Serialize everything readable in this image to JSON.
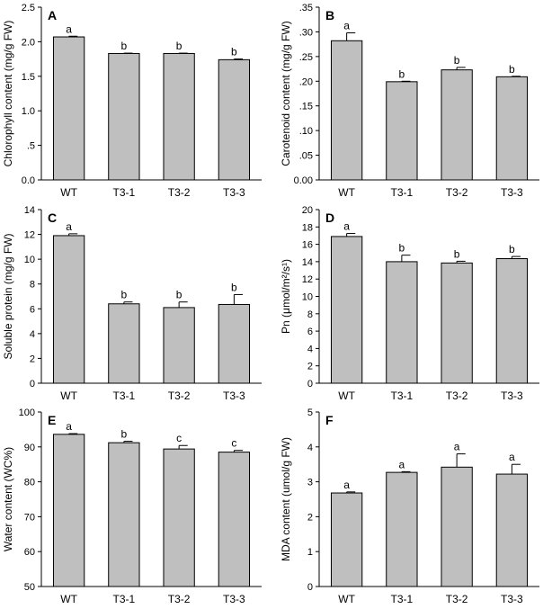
{
  "chart_data": [
    {
      "panel": "A",
      "type": "bar",
      "ylabel": "Chlorophyll content (mg/g FW)",
      "categories": [
        "WT",
        "T3-1",
        "T3-2",
        "T3-3"
      ],
      "values": [
        2.07,
        1.83,
        1.83,
        1.74
      ],
      "errors": [
        0.01,
        0.005,
        0.005,
        0.01
      ],
      "significance": [
        "a",
        "b",
        "b",
        "b"
      ],
      "ylim": [
        0,
        2.5
      ],
      "yticks": [
        0,
        0.5,
        1.0,
        1.5,
        2.0,
        2.5
      ],
      "ytick_labels": [
        "0.0",
        ".5",
        "1.0",
        "1.5",
        "2.0",
        "2.5"
      ]
    },
    {
      "panel": "B",
      "type": "bar",
      "ylabel": "Carotenoid content (mg/g FW)",
      "categories": [
        "WT",
        "T3-1",
        "T3-2",
        "T3-3"
      ],
      "values": [
        0.282,
        0.199,
        0.223,
        0.209
      ],
      "errors": [
        0.016,
        0.001,
        0.005,
        0.001
      ],
      "significance": [
        "a",
        "b",
        "b",
        "b"
      ],
      "ylim": [
        0,
        0.35
      ],
      "yticks": [
        0,
        0.05,
        0.1,
        0.15,
        0.2,
        0.25,
        0.3,
        0.35
      ],
      "ytick_labels": [
        "0.00",
        ".05",
        ".10",
        ".15",
        ".20",
        ".25",
        ".30",
        ".35"
      ]
    },
    {
      "panel": "C",
      "type": "bar",
      "ylabel": "Soluble protein (mg/g FW)",
      "categories": [
        "WT",
        "T3-1",
        "T3-2",
        "T3-3"
      ],
      "values": [
        11.9,
        6.4,
        6.1,
        6.35
      ],
      "errors": [
        0.15,
        0.15,
        0.45,
        0.8
      ],
      "significance": [
        "a",
        "b",
        "b",
        "b"
      ],
      "ylim": [
        0,
        14
      ],
      "yticks": [
        0,
        2,
        4,
        6,
        8,
        10,
        12,
        14
      ],
      "ytick_labels": [
        "0",
        "2",
        "4",
        "6",
        "8",
        "10",
        "12",
        "14"
      ]
    },
    {
      "panel": "D",
      "type": "bar",
      "ylabel": "Pn (μmol/m²/s¹)",
      "categories": [
        "WT",
        "T3-1",
        "T3-2",
        "T3-3"
      ],
      "values": [
        16.9,
        14.0,
        13.85,
        14.35
      ],
      "errors": [
        0.35,
        0.75,
        0.2,
        0.25
      ],
      "significance": [
        "a",
        "b",
        "b",
        "b"
      ],
      "ylim": [
        0,
        20
      ],
      "yticks": [
        0,
        2,
        4,
        6,
        8,
        10,
        12,
        14,
        16,
        18,
        20
      ],
      "ytick_labels": [
        "0",
        "2",
        "4",
        "6",
        "8",
        "10",
        "12",
        "14",
        "16",
        "18",
        "20"
      ]
    },
    {
      "panel": "E",
      "type": "bar",
      "ylabel": "Water content (WC%)",
      "categories": [
        "WT",
        "T3-1",
        "T3-2",
        "T3-3"
      ],
      "values": [
        93.6,
        91.2,
        89.4,
        88.5
      ],
      "errors": [
        0.2,
        0.4,
        1.0,
        0.5
      ],
      "significance": [
        "a",
        "b",
        "c",
        "c"
      ],
      "ylim": [
        50,
        100
      ],
      "yticks": [
        50,
        60,
        70,
        80,
        90,
        100
      ],
      "ytick_labels": [
        "50",
        "60",
        "70",
        "80",
        "90",
        "100"
      ]
    },
    {
      "panel": "F",
      "type": "bar",
      "ylabel": "MDA content (umol/g FW)",
      "categories": [
        "WT",
        "T3-1",
        "T3-2",
        "T3-3"
      ],
      "values": [
        2.68,
        3.27,
        3.42,
        3.22
      ],
      "errors": [
        0.03,
        0.02,
        0.38,
        0.28
      ],
      "significance": [
        "a",
        "a",
        "a",
        "a"
      ],
      "ylim": [
        0,
        5
      ],
      "yticks": [
        0,
        1,
        2,
        3,
        4,
        5
      ],
      "ytick_labels": [
        "0",
        "1",
        "2",
        "3",
        "4",
        "5"
      ]
    }
  ],
  "colors": {
    "bar_fill": "#bfbfbf",
    "bar_stroke": "#000000",
    "axis": "#000000"
  }
}
